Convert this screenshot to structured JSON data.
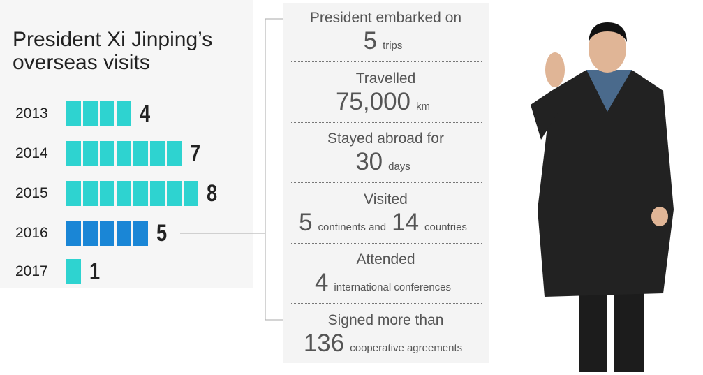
{
  "chart_data": {
    "type": "pictograph",
    "title": "President Xi Jinping’s overseas visits",
    "categories": [
      "2013",
      "2014",
      "2015",
      "2016",
      "2017"
    ],
    "values": [
      4,
      7,
      8,
      5,
      1
    ],
    "colors": [
      "#2ed3d0",
      "#2ed3d0",
      "#2ed3d0",
      "#1a86d6",
      "#2ed3d0"
    ]
  },
  "stats": [
    {
      "label": "President embarked on",
      "figures": [
        {
          "number": "5",
          "unit": "trips"
        }
      ]
    },
    {
      "label": "Travelled",
      "figures": [
        {
          "number": "75,000",
          "unit": "km"
        }
      ]
    },
    {
      "label": "Stayed abroad for",
      "figures": [
        {
          "number": "30",
          "unit": "days"
        }
      ]
    },
    {
      "label": "Visited",
      "figures": [
        {
          "number": "5",
          "unit": "continents and"
        },
        {
          "number": "14",
          "unit": "countries"
        }
      ]
    },
    {
      "label": "Attended",
      "figures": [
        {
          "number": "4",
          "unit": "international conferences"
        }
      ]
    },
    {
      "label": "Signed more than",
      "figures": [
        {
          "number": "136",
          "unit": "cooperative agreements"
        }
      ]
    }
  ]
}
